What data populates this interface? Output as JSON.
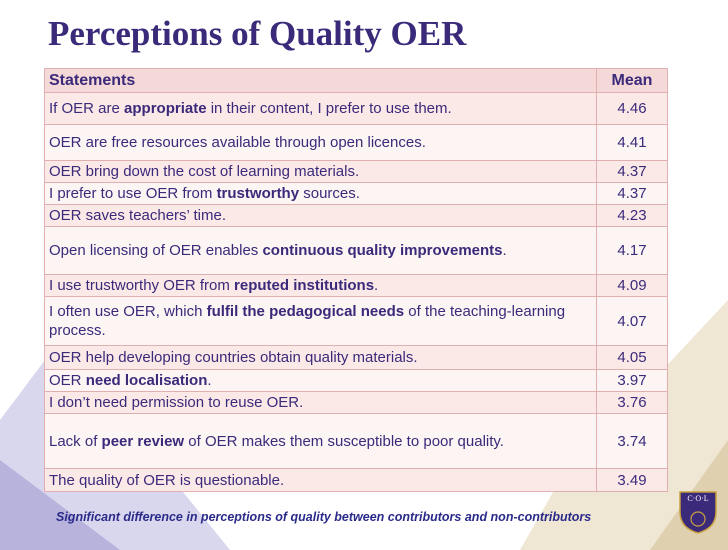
{
  "header": {
    "title": "Perceptions of Quality OER"
  },
  "table": {
    "columns": [
      "Statements",
      "Mean"
    ],
    "rows": [
      {
        "statement": [
          {
            "text": "If OER are "
          },
          {
            "text": "appropriate",
            "bold": true
          },
          {
            "text": " in their content, I prefer to use them."
          }
        ],
        "mean": 4.46
      },
      {
        "statement": [
          {
            "text": "OER are free resources available through open licences."
          }
        ],
        "mean": 4.41
      },
      {
        "statement": [
          {
            "text": "OER bring down the cost of learning materials."
          }
        ],
        "mean": 4.37
      },
      {
        "statement": [
          {
            "text": "I prefer to use OER from "
          },
          {
            "text": "trustworthy",
            "bold": true
          },
          {
            "text": " sources."
          }
        ],
        "mean": 4.37
      },
      {
        "statement": [
          {
            "text": "OER saves teachers’ time."
          }
        ],
        "mean": 4.23
      },
      {
        "statement": [
          {
            "text": "Open licensing of OER enables "
          },
          {
            "text": "continuous quality improvements",
            "bold": true
          },
          {
            "text": "."
          }
        ],
        "mean": 4.17
      },
      {
        "statement": [
          {
            "text": "I use trustworthy OER from "
          },
          {
            "text": "reputed institutions",
            "bold": true
          },
          {
            "text": "."
          }
        ],
        "mean": 4.09
      },
      {
        "statement": [
          {
            "text": "I often use OER, which "
          },
          {
            "text": "fulfil the pedagogical needs",
            "bold": true
          },
          {
            "text": " of the teaching-learning process."
          }
        ],
        "mean": 4.07
      },
      {
        "statement": [
          {
            "text": "OER help developing countries obtain quality materials."
          }
        ],
        "mean": 4.05
      },
      {
        "statement": [
          {
            "text": "OER "
          },
          {
            "text": "need localisation",
            "bold": true
          },
          {
            "text": "."
          }
        ],
        "mean": 3.97
      },
      {
        "statement": [
          {
            "text": "I don’t need permission to reuse OER."
          }
        ],
        "mean": 3.76
      },
      {
        "statement": [
          {
            "text": "Lack of "
          },
          {
            "text": "peer review",
            "bold": true
          },
          {
            "text": " of OER makes them susceptible to poor quality."
          }
        ],
        "mean": 3.74
      },
      {
        "statement": [
          {
            "text": "The quality of OER is questionable."
          }
        ],
        "mean": 3.49
      }
    ]
  },
  "footnote": "Significant difference in perceptions of quality between contributors and non-contributors",
  "logo": "C·O·L"
}
